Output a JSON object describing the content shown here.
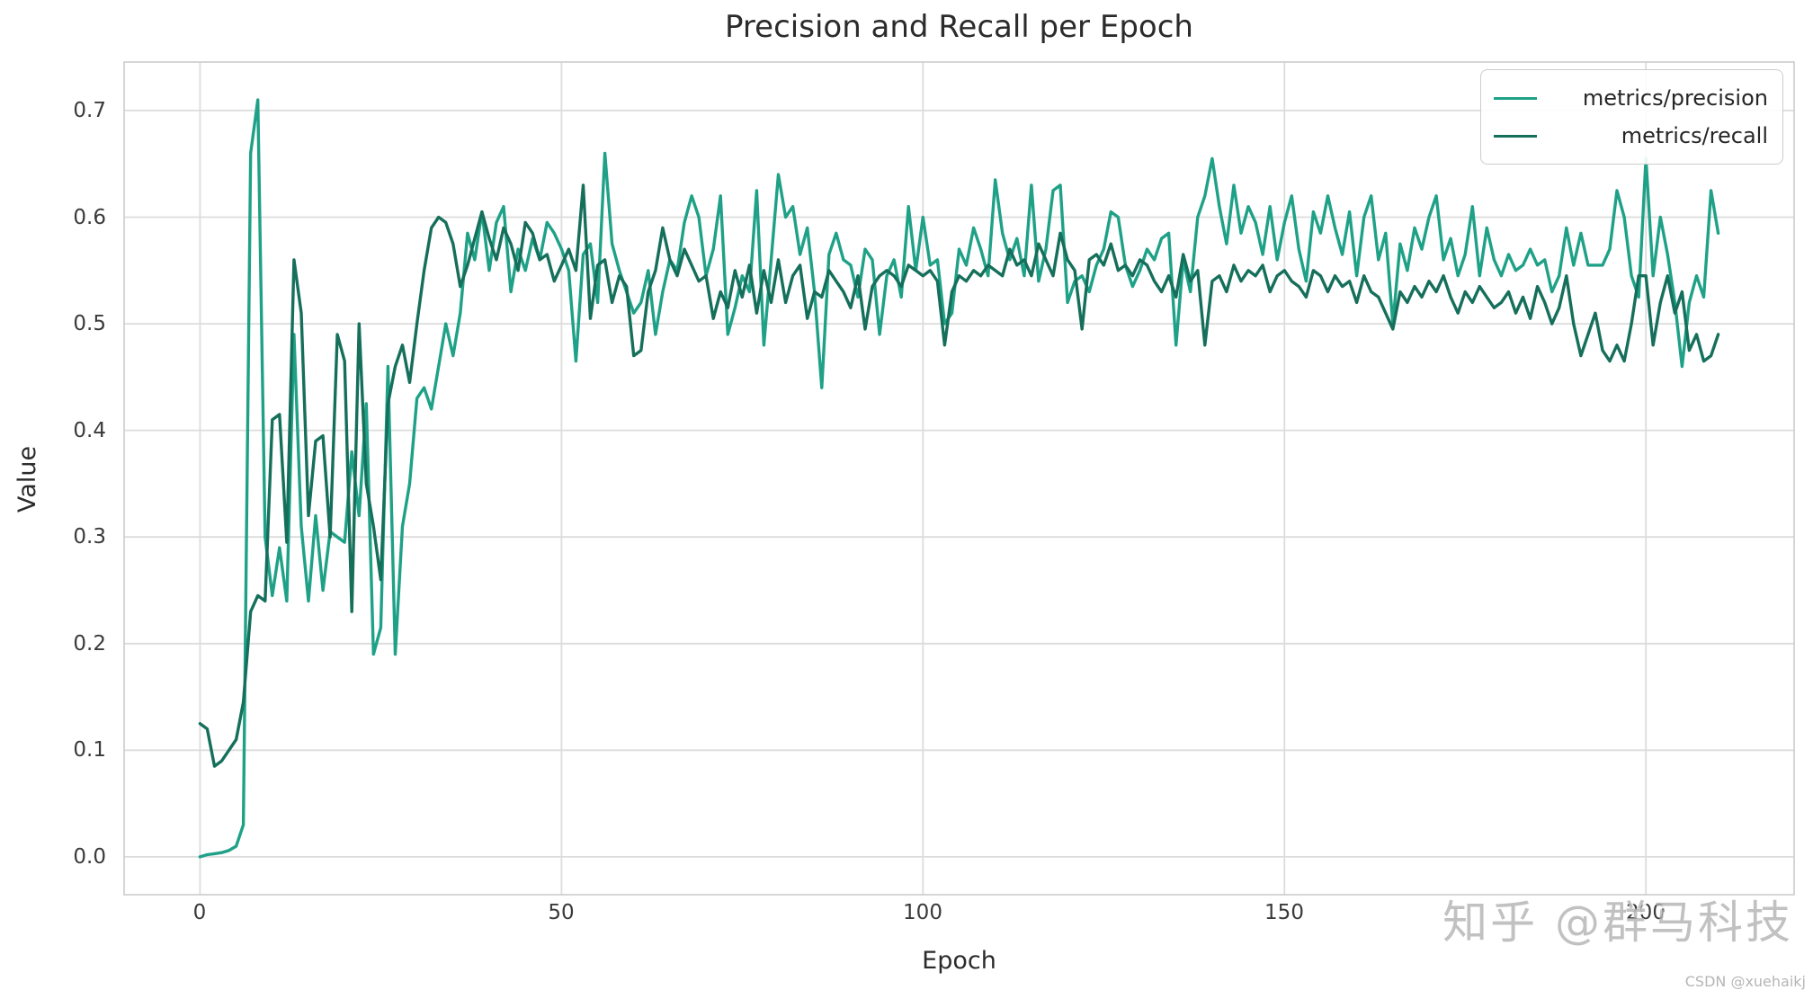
{
  "title": "Precision and Recall per Epoch",
  "watermarks": {
    "zhihu": "知乎 @群马科技",
    "csdn": "CSDN @xuehaikj"
  },
  "chart_data": {
    "type": "line",
    "title": "Precision and Recall per Epoch",
    "xlabel": "Epoch",
    "ylabel": "Value",
    "grid": true,
    "legend_position": "upper right",
    "xlim": [
      -10.5,
      220.5
    ],
    "ylim": [
      -0.0355,
      0.7455
    ],
    "xticks": [
      0,
      50,
      100,
      150,
      200
    ],
    "yticks": [
      0.0,
      0.1,
      0.2,
      0.3,
      0.4,
      0.5,
      0.6,
      0.7
    ],
    "x_start": 0,
    "x_step": 1,
    "series": [
      {
        "name": "metrics/precision",
        "color": "#1fa187",
        "values": [
          0.0,
          0.002,
          0.003,
          0.004,
          0.006,
          0.01,
          0.03,
          0.66,
          0.71,
          0.3,
          0.245,
          0.29,
          0.24,
          0.49,
          0.31,
          0.24,
          0.32,
          0.25,
          0.305,
          0.3,
          0.295,
          0.38,
          0.32,
          0.425,
          0.19,
          0.215,
          0.46,
          0.19,
          0.31,
          0.35,
          0.43,
          0.44,
          0.42,
          0.46,
          0.5,
          0.47,
          0.51,
          0.585,
          0.56,
          0.605,
          0.55,
          0.595,
          0.61,
          0.53,
          0.57,
          0.55,
          0.58,
          0.56,
          0.595,
          0.585,
          0.57,
          0.55,
          0.465,
          0.565,
          0.575,
          0.52,
          0.66,
          0.575,
          0.55,
          0.53,
          0.51,
          0.52,
          0.55,
          0.49,
          0.53,
          0.56,
          0.55,
          0.595,
          0.62,
          0.6,
          0.545,
          0.57,
          0.62,
          0.49,
          0.515,
          0.545,
          0.53,
          0.625,
          0.48,
          0.56,
          0.64,
          0.6,
          0.61,
          0.565,
          0.59,
          0.53,
          0.44,
          0.565,
          0.585,
          0.56,
          0.555,
          0.525,
          0.57,
          0.56,
          0.49,
          0.545,
          0.56,
          0.525,
          0.61,
          0.55,
          0.6,
          0.555,
          0.56,
          0.5,
          0.51,
          0.57,
          0.555,
          0.59,
          0.57,
          0.545,
          0.635,
          0.585,
          0.56,
          0.58,
          0.545,
          0.63,
          0.54,
          0.57,
          0.625,
          0.63,
          0.52,
          0.54,
          0.545,
          0.53,
          0.555,
          0.57,
          0.605,
          0.6,
          0.555,
          0.535,
          0.55,
          0.57,
          0.56,
          0.58,
          0.585,
          0.48,
          0.56,
          0.53,
          0.6,
          0.62,
          0.655,
          0.61,
          0.575,
          0.63,
          0.585,
          0.61,
          0.595,
          0.565,
          0.61,
          0.56,
          0.595,
          0.62,
          0.57,
          0.54,
          0.605,
          0.585,
          0.62,
          0.59,
          0.565,
          0.605,
          0.545,
          0.6,
          0.62,
          0.56,
          0.585,
          0.5,
          0.575,
          0.55,
          0.59,
          0.57,
          0.6,
          0.62,
          0.56,
          0.58,
          0.545,
          0.565,
          0.61,
          0.545,
          0.59,
          0.56,
          0.545,
          0.565,
          0.55,
          0.555,
          0.57,
          0.555,
          0.56,
          0.53,
          0.545,
          0.59,
          0.555,
          0.585,
          0.555,
          0.555,
          0.555,
          0.57,
          0.625,
          0.6,
          0.545,
          0.525,
          0.655,
          0.545,
          0.6,
          0.565,
          0.52,
          0.46,
          0.52,
          0.545,
          0.525,
          0.625,
          0.585
        ]
      },
      {
        "name": "metrics/recall",
        "color": "#156f5b",
        "values": [
          0.125,
          0.12,
          0.085,
          0.09,
          0.1,
          0.11,
          0.145,
          0.23,
          0.245,
          0.24,
          0.41,
          0.415,
          0.295,
          0.56,
          0.51,
          0.32,
          0.39,
          0.395,
          0.3,
          0.49,
          0.465,
          0.23,
          0.5,
          0.35,
          0.31,
          0.26,
          0.425,
          0.46,
          0.48,
          0.445,
          0.5,
          0.55,
          0.59,
          0.6,
          0.595,
          0.575,
          0.535,
          0.555,
          0.58,
          0.605,
          0.58,
          0.56,
          0.59,
          0.575,
          0.55,
          0.595,
          0.585,
          0.56,
          0.565,
          0.54,
          0.555,
          0.57,
          0.55,
          0.63,
          0.505,
          0.555,
          0.56,
          0.52,
          0.545,
          0.535,
          0.47,
          0.475,
          0.53,
          0.55,
          0.59,
          0.56,
          0.545,
          0.57,
          0.555,
          0.54,
          0.545,
          0.505,
          0.53,
          0.515,
          0.55,
          0.525,
          0.555,
          0.51,
          0.55,
          0.52,
          0.56,
          0.52,
          0.545,
          0.555,
          0.505,
          0.53,
          0.525,
          0.55,
          0.54,
          0.53,
          0.515,
          0.545,
          0.495,
          0.535,
          0.545,
          0.55,
          0.545,
          0.535,
          0.555,
          0.55,
          0.545,
          0.55,
          0.54,
          0.48,
          0.53,
          0.545,
          0.54,
          0.55,
          0.545,
          0.555,
          0.55,
          0.545,
          0.57,
          0.555,
          0.56,
          0.545,
          0.575,
          0.56,
          0.545,
          0.585,
          0.56,
          0.55,
          0.495,
          0.56,
          0.565,
          0.555,
          0.575,
          0.55,
          0.555,
          0.545,
          0.56,
          0.555,
          0.54,
          0.53,
          0.545,
          0.525,
          0.565,
          0.54,
          0.55,
          0.48,
          0.54,
          0.545,
          0.53,
          0.555,
          0.54,
          0.55,
          0.545,
          0.555,
          0.53,
          0.545,
          0.55,
          0.54,
          0.535,
          0.525,
          0.55,
          0.545,
          0.53,
          0.545,
          0.535,
          0.54,
          0.52,
          0.545,
          0.53,
          0.525,
          0.51,
          0.495,
          0.53,
          0.52,
          0.535,
          0.525,
          0.54,
          0.53,
          0.545,
          0.525,
          0.51,
          0.53,
          0.52,
          0.535,
          0.525,
          0.515,
          0.52,
          0.53,
          0.51,
          0.525,
          0.505,
          0.535,
          0.52,
          0.5,
          0.515,
          0.545,
          0.5,
          0.47,
          0.49,
          0.51,
          0.475,
          0.465,
          0.48,
          0.465,
          0.5,
          0.545,
          0.545,
          0.48,
          0.52,
          0.545,
          0.51,
          0.53,
          0.475,
          0.49,
          0.465,
          0.47,
          0.49
        ]
      }
    ],
    "style": {
      "grid_color": "#dcdcdc",
      "spine_color": "#cccccc",
      "background": "#ffffff",
      "text_color": "#3a3a3a"
    }
  }
}
